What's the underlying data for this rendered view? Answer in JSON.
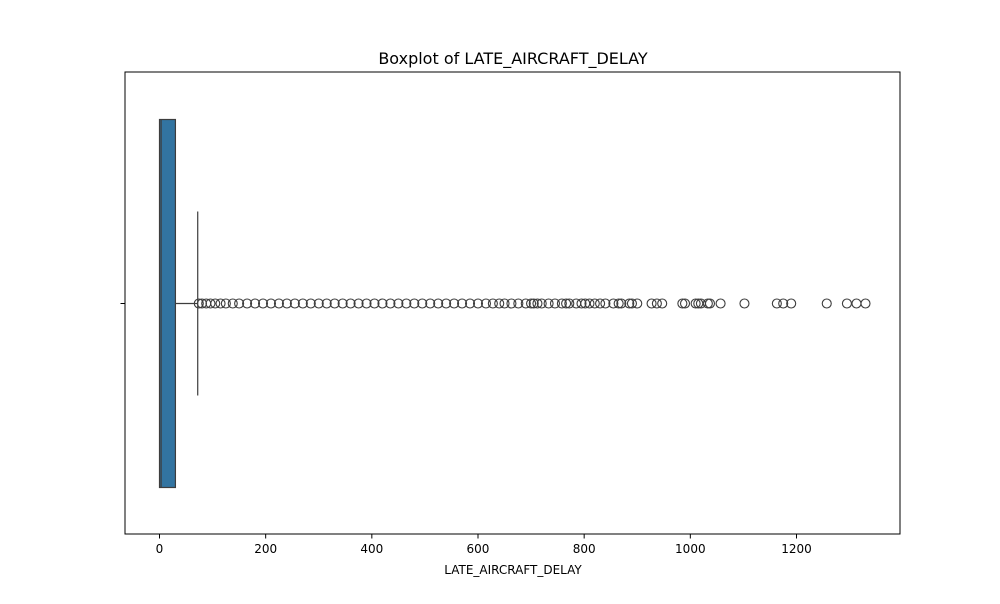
{
  "chart_data": {
    "type": "box",
    "orientation": "horizontal",
    "title": "Boxplot of LATE_AIRCRAFT_DELAY",
    "xlabel": "LATE_AIRCRAFT_DELAY",
    "ylabel": "",
    "xlim": [
      -65,
      1395
    ],
    "xticks": [
      0,
      200,
      400,
      600,
      800,
      1000,
      1200
    ],
    "grid": false,
    "colors": {
      "box_fill": "#3274a1",
      "edge": "#3d3d3d"
    },
    "series": [
      {
        "min": 0,
        "q1": 0,
        "median": 3,
        "q3": 30,
        "whisker_low": 0,
        "whisker_high": 72,
        "outliers": [
          74,
          80,
          88,
          96,
          105,
          115,
          125,
          138,
          150,
          165,
          180,
          195,
          210,
          225,
          240,
          255,
          270,
          285,
          300,
          315,
          330,
          345,
          360,
          375,
          390,
          405,
          420,
          435,
          450,
          465,
          480,
          495,
          510,
          525,
          540,
          555,
          570,
          585,
          600,
          615,
          628,
          640,
          650,
          663,
          676,
          690,
          700,
          705,
          712,
          720,
          733,
          745,
          758,
          766,
          772,
          785,
          795,
          802,
          810,
          820,
          830,
          840,
          855,
          865,
          870,
          885,
          890,
          900,
          927,
          937,
          947,
          985,
          990,
          1010,
          1015,
          1020,
          1033,
          1037,
          1057,
          1102,
          1163,
          1175,
          1190,
          1257,
          1295,
          1313,
          1330
        ]
      }
    ]
  }
}
